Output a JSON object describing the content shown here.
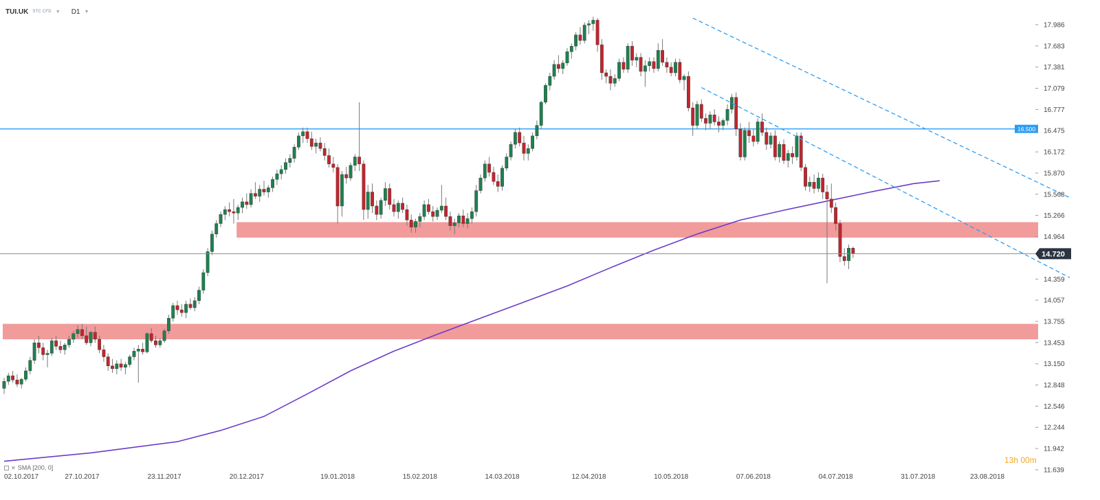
{
  "header": {
    "symbol": "TUI.UK",
    "instrument_type": "STC CFD",
    "timeframe": "D1",
    "dropdown_icon": "chevron-down-icon"
  },
  "indicator": {
    "label": "SMA [200, 0]",
    "icon": "indicator-settings-icon",
    "close_icon": "close-icon"
  },
  "timer_text": "13h 00m",
  "colors": {
    "bull": "#1f8050",
    "bear": "#c0262d",
    "sma": "#6a3cc9",
    "channel": "#2a9df4",
    "resistance_line": "#2a9df4",
    "zone": "#ef8a8a",
    "price_line": "#8a8a8a",
    "price_tag_bg": "#2b3440"
  },
  "chart_data": {
    "type": "candlestick",
    "instrument": "TUI.UK",
    "timeframe": "D1",
    "ylim": [
      11.639,
      18.24
    ],
    "yticks": [
      "17.986",
      "17.683",
      "17.381",
      "17.079",
      "16.777",
      "16.475",
      "16.172",
      "15.870",
      "15.568",
      "15.266",
      "14.964",
      "14.359",
      "14.057",
      "13.755",
      "13.453",
      "13.150",
      "12.848",
      "12.546",
      "12.244",
      "11.942",
      "11.639"
    ],
    "xticks": [
      {
        "label": "02.10.2017",
        "index": 0
      },
      {
        "label": "27.10.2017",
        "index": 18
      },
      {
        "label": "23.11.2017",
        "index": 37
      },
      {
        "label": "20.12.2017",
        "index": 56
      },
      {
        "label": "19.01.2018",
        "index": 77
      },
      {
        "label": "15.02.2018",
        "index": 96
      },
      {
        "label": "14.03.2018",
        "index": 115
      },
      {
        "label": "12.04.2018",
        "index": 135
      },
      {
        "label": "10.05.2018",
        "index": 154
      },
      {
        "label": "07.06.2018",
        "index": 173
      },
      {
        "label": "04.07.2018",
        "index": 192
      },
      {
        "label": "31.07.2018",
        "index": 211
      },
      {
        "label": "23.08.2018",
        "index": 227
      }
    ],
    "current_price": "14.720",
    "resistance_level": "16.500",
    "zones": [
      {
        "from": 14.95,
        "to": 15.17,
        "start_index": 54
      },
      {
        "from": 13.5,
        "to": 13.72,
        "start_index": 0
      }
    ],
    "channel": [
      {
        "start": {
          "index": 159,
          "y": 18.08
        },
        "end": {
          "index": 246,
          "y": 15.52
        }
      },
      {
        "start": {
          "index": 161,
          "y": 17.09
        },
        "end": {
          "index": 246,
          "y": 14.38
        }
      }
    ],
    "sma": {
      "name": "SMA [200, 0]",
      "points": [
        [
          0,
          11.76
        ],
        [
          20,
          11.88
        ],
        [
          40,
          12.04
        ],
        [
          50,
          12.2
        ],
        [
          60,
          12.4
        ],
        [
          70,
          12.72
        ],
        [
          80,
          13.05
        ],
        [
          90,
          13.33
        ],
        [
          100,
          13.57
        ],
        [
          110,
          13.8
        ],
        [
          120,
          14.03
        ],
        [
          130,
          14.26
        ],
        [
          140,
          14.52
        ],
        [
          150,
          14.77
        ],
        [
          160,
          15.0
        ],
        [
          170,
          15.2
        ],
        [
          180,
          15.34
        ],
        [
          190,
          15.47
        ],
        [
          200,
          15.6
        ],
        [
          210,
          15.72
        ],
        [
          216,
          15.76
        ]
      ]
    },
    "candles": [
      [
        12.8,
        12.95,
        12.72,
        12.9
      ],
      [
        12.9,
        13.02,
        12.85,
        12.98
      ],
      [
        12.98,
        13.05,
        12.88,
        12.92
      ],
      [
        12.92,
        13.0,
        12.82,
        12.86
      ],
      [
        12.86,
        12.95,
        12.8,
        12.93
      ],
      [
        12.93,
        13.1,
        12.9,
        13.05
      ],
      [
        13.05,
        13.25,
        13.0,
        13.2
      ],
      [
        13.2,
        13.5,
        13.15,
        13.45
      ],
      [
        13.45,
        13.55,
        13.3,
        13.38
      ],
      [
        13.38,
        13.45,
        13.2,
        13.28
      ],
      [
        13.28,
        13.35,
        13.1,
        13.3
      ],
      [
        13.3,
        13.52,
        13.26,
        13.48
      ],
      [
        13.48,
        13.55,
        13.35,
        13.4
      ],
      [
        13.4,
        13.48,
        13.3,
        13.35
      ],
      [
        13.35,
        13.45,
        13.28,
        13.42
      ],
      [
        13.42,
        13.55,
        13.38,
        13.5
      ],
      [
        13.5,
        13.62,
        13.45,
        13.58
      ],
      [
        13.58,
        13.7,
        13.52,
        13.64
      ],
      [
        13.64,
        13.72,
        13.5,
        13.55
      ],
      [
        13.55,
        13.68,
        13.42,
        13.45
      ],
      [
        13.45,
        13.62,
        13.4,
        13.6
      ],
      [
        13.6,
        13.68,
        13.45,
        13.5
      ],
      [
        13.5,
        13.55,
        13.3,
        13.35
      ],
      [
        13.35,
        13.42,
        13.18,
        13.25
      ],
      [
        13.25,
        13.3,
        13.05,
        13.12
      ],
      [
        13.12,
        13.22,
        13.02,
        13.08
      ],
      [
        13.08,
        13.2,
        13.0,
        13.15
      ],
      [
        13.15,
        13.22,
        13.05,
        13.1
      ],
      [
        13.1,
        13.18,
        13.0,
        13.14
      ],
      [
        13.14,
        13.28,
        13.1,
        13.25
      ],
      [
        13.25,
        13.38,
        13.2,
        13.33
      ],
      [
        13.33,
        13.42,
        12.88,
        13.36
      ],
      [
        13.36,
        13.45,
        13.28,
        13.32
      ],
      [
        13.32,
        13.6,
        13.3,
        13.58
      ],
      [
        13.58,
        13.66,
        13.45,
        13.48
      ],
      [
        13.48,
        13.55,
        13.38,
        13.42
      ],
      [
        13.42,
        13.52,
        13.38,
        13.48
      ],
      [
        13.48,
        13.65,
        13.45,
        13.62
      ],
      [
        13.62,
        13.85,
        13.58,
        13.8
      ],
      [
        13.8,
        14.02,
        13.75,
        13.98
      ],
      [
        13.98,
        14.05,
        13.85,
        13.92
      ],
      [
        13.92,
        14.0,
        13.82,
        13.88
      ],
      [
        13.88,
        14.05,
        13.8,
        14.0
      ],
      [
        14.0,
        14.08,
        13.92,
        13.95
      ],
      [
        13.95,
        14.1,
        13.9,
        14.05
      ],
      [
        14.05,
        14.25,
        14.0,
        14.2
      ],
      [
        14.2,
        14.5,
        14.15,
        14.45
      ],
      [
        14.45,
        14.8,
        14.4,
        14.75
      ],
      [
        14.75,
        15.05,
        14.7,
        15.0
      ],
      [
        15.0,
        15.2,
        14.95,
        15.15
      ],
      [
        15.15,
        15.32,
        15.1,
        15.28
      ],
      [
        15.28,
        15.4,
        15.2,
        15.35
      ],
      [
        15.35,
        15.45,
        15.25,
        15.32
      ],
      [
        15.32,
        15.5,
        15.15,
        15.3
      ],
      [
        15.3,
        15.42,
        15.2,
        15.38
      ],
      [
        15.38,
        15.52,
        15.3,
        15.46
      ],
      [
        15.46,
        15.58,
        15.36,
        15.42
      ],
      [
        15.42,
        15.64,
        15.38,
        15.58
      ],
      [
        15.58,
        15.74,
        15.5,
        15.54
      ],
      [
        15.54,
        15.7,
        15.46,
        15.64
      ],
      [
        15.64,
        15.76,
        15.55,
        15.6
      ],
      [
        15.6,
        15.7,
        15.52,
        15.66
      ],
      [
        15.66,
        15.82,
        15.6,
        15.78
      ],
      [
        15.78,
        15.92,
        15.7,
        15.86
      ],
      [
        15.86,
        15.98,
        15.78,
        15.92
      ],
      [
        15.92,
        16.08,
        15.86,
        16.02
      ],
      [
        16.02,
        16.14,
        15.95,
        16.08
      ],
      [
        16.08,
        16.28,
        16.02,
        16.24
      ],
      [
        16.24,
        16.45,
        16.2,
        16.4
      ],
      [
        16.4,
        16.52,
        16.3,
        16.46
      ],
      [
        16.46,
        16.52,
        16.3,
        16.36
      ],
      [
        16.36,
        16.46,
        16.2,
        16.25
      ],
      [
        16.25,
        16.36,
        16.15,
        16.3
      ],
      [
        16.3,
        16.38,
        16.18,
        16.22
      ],
      [
        16.22,
        16.3,
        16.05,
        16.12
      ],
      [
        16.12,
        16.22,
        15.95,
        16.0
      ],
      [
        16.0,
        16.1,
        15.88,
        15.95
      ],
      [
        15.95,
        16.0,
        15.15,
        15.4
      ],
      [
        15.4,
        15.9,
        15.25,
        15.85
      ],
      [
        15.85,
        15.96,
        15.72,
        15.8
      ],
      [
        15.8,
        16.02,
        15.76,
        15.98
      ],
      [
        15.98,
        16.14,
        15.9,
        16.1
      ],
      [
        16.1,
        16.88,
        15.9,
        16.0
      ],
      [
        16.0,
        16.05,
        15.2,
        15.35
      ],
      [
        15.35,
        15.7,
        15.22,
        15.6
      ],
      [
        15.6,
        15.72,
        15.3,
        15.4
      ],
      [
        15.4,
        15.48,
        15.2,
        15.28
      ],
      [
        15.28,
        15.52,
        15.22,
        15.48
      ],
      [
        15.48,
        15.74,
        15.4,
        15.65
      ],
      [
        15.65,
        15.72,
        15.35,
        15.42
      ],
      [
        15.42,
        15.5,
        15.25,
        15.32
      ],
      [
        15.32,
        15.48,
        15.22,
        15.44
      ],
      [
        15.44,
        15.52,
        15.3,
        15.35
      ],
      [
        15.35,
        15.42,
        15.12,
        15.2
      ],
      [
        15.2,
        15.28,
        15.02,
        15.1
      ],
      [
        15.1,
        15.22,
        15.02,
        15.18
      ],
      [
        15.18,
        15.3,
        15.1,
        15.25
      ],
      [
        15.25,
        15.48,
        15.2,
        15.42
      ],
      [
        15.42,
        15.5,
        15.28,
        15.32
      ],
      [
        15.32,
        15.4,
        15.18,
        15.25
      ],
      [
        15.25,
        15.38,
        15.2,
        15.34
      ],
      [
        15.34,
        15.7,
        15.3,
        15.4
      ],
      [
        15.4,
        15.52,
        15.2,
        15.25
      ],
      [
        15.25,
        15.32,
        15.05,
        15.12
      ],
      [
        15.12,
        15.22,
        15.0,
        15.16
      ],
      [
        15.16,
        15.3,
        15.1,
        15.26
      ],
      [
        15.26,
        15.35,
        15.1,
        15.15
      ],
      [
        15.15,
        15.3,
        15.08,
        15.22
      ],
      [
        15.22,
        15.38,
        15.15,
        15.32
      ],
      [
        15.32,
        15.7,
        15.25,
        15.62
      ],
      [
        15.62,
        15.85,
        15.58,
        15.8
      ],
      [
        15.8,
        16.05,
        15.75,
        16.0
      ],
      [
        16.0,
        16.1,
        15.82,
        15.88
      ],
      [
        15.88,
        15.96,
        15.7,
        15.75
      ],
      [
        15.75,
        15.85,
        15.6,
        15.68
      ],
      [
        15.68,
        15.98,
        15.62,
        15.94
      ],
      [
        15.94,
        16.15,
        15.9,
        16.1
      ],
      [
        16.1,
        16.32,
        16.05,
        16.28
      ],
      [
        16.28,
        16.5,
        16.22,
        16.45
      ],
      [
        16.45,
        16.52,
        16.25,
        16.3
      ],
      [
        16.3,
        16.4,
        16.05,
        16.15
      ],
      [
        16.15,
        16.28,
        16.05,
        16.22
      ],
      [
        16.22,
        16.45,
        16.18,
        16.4
      ],
      [
        16.4,
        16.62,
        16.35,
        16.55
      ],
      [
        16.55,
        16.9,
        16.5,
        16.88
      ],
      [
        16.88,
        17.15,
        16.85,
        17.12
      ],
      [
        17.12,
        17.3,
        17.05,
        17.25
      ],
      [
        17.25,
        17.48,
        17.2,
        17.42
      ],
      [
        17.42,
        17.55,
        17.3,
        17.36
      ],
      [
        17.36,
        17.48,
        17.28,
        17.44
      ],
      [
        17.44,
        17.65,
        17.4,
        17.6
      ],
      [
        17.6,
        17.72,
        17.5,
        17.68
      ],
      [
        17.68,
        17.88,
        17.62,
        17.84
      ],
      [
        17.84,
        17.95,
        17.7,
        17.76
      ],
      [
        17.76,
        18.02,
        17.72,
        17.98
      ],
      [
        17.98,
        18.05,
        17.85,
        18.0
      ],
      [
        18.0,
        18.1,
        17.9,
        18.05
      ],
      [
        18.05,
        18.08,
        17.6,
        17.7
      ],
      [
        17.7,
        17.78,
        17.2,
        17.3
      ],
      [
        17.3,
        17.35,
        17.15,
        17.25
      ],
      [
        17.25,
        17.35,
        17.05,
        17.15
      ],
      [
        17.15,
        17.28,
        17.1,
        17.22
      ],
      [
        17.22,
        17.5,
        17.18,
        17.45
      ],
      [
        17.45,
        17.52,
        17.3,
        17.35
      ],
      [
        17.35,
        17.72,
        17.3,
        17.68
      ],
      [
        17.68,
        17.75,
        17.4,
        17.48
      ],
      [
        17.48,
        17.58,
        17.38,
        17.52
      ],
      [
        17.52,
        17.58,
        17.25,
        17.32
      ],
      [
        17.32,
        17.48,
        17.1,
        17.4
      ],
      [
        17.4,
        17.52,
        17.32,
        17.46
      ],
      [
        17.46,
        17.52,
        17.3,
        17.36
      ],
      [
        17.36,
        17.72,
        17.32,
        17.62
      ],
      [
        17.62,
        17.78,
        17.4,
        17.45
      ],
      [
        17.45,
        17.52,
        17.3,
        17.38
      ],
      [
        17.38,
        17.45,
        17.25,
        17.3
      ],
      [
        17.3,
        17.5,
        17.25,
        17.45
      ],
      [
        17.45,
        17.5,
        17.15,
        17.2
      ],
      [
        17.2,
        17.28,
        17.05,
        17.25
      ],
      [
        17.25,
        17.32,
        16.75,
        16.8
      ],
      [
        16.8,
        16.88,
        16.4,
        16.55
      ],
      [
        16.55,
        16.9,
        16.5,
        16.85
      ],
      [
        16.85,
        16.92,
        16.6,
        16.65
      ],
      [
        16.65,
        16.72,
        16.48,
        16.58
      ],
      [
        16.58,
        16.75,
        16.5,
        16.7
      ],
      [
        16.7,
        16.78,
        16.55,
        16.6
      ],
      [
        16.6,
        16.68,
        16.45,
        16.55
      ],
      [
        16.55,
        16.65,
        16.48,
        16.62
      ],
      [
        16.62,
        16.85,
        16.55,
        16.78
      ],
      [
        16.78,
        17.0,
        16.72,
        16.95
      ],
      [
        16.95,
        17.02,
        16.4,
        16.5
      ],
      [
        16.5,
        16.58,
        16.05,
        16.1
      ],
      [
        16.1,
        16.52,
        16.05,
        16.48
      ],
      [
        16.48,
        16.6,
        16.3,
        16.4
      ],
      [
        16.4,
        16.5,
        16.25,
        16.32
      ],
      [
        16.32,
        16.65,
        16.28,
        16.6
      ],
      [
        16.6,
        16.72,
        16.4,
        16.45
      ],
      [
        16.45,
        16.52,
        16.2,
        16.28
      ],
      [
        16.28,
        16.45,
        16.22,
        16.4
      ],
      [
        16.4,
        16.48,
        16.05,
        16.1
      ],
      [
        16.1,
        16.32,
        16.02,
        16.28
      ],
      [
        16.28,
        16.35,
        16.0,
        16.05
      ],
      [
        16.05,
        16.2,
        15.95,
        16.15
      ],
      [
        16.15,
        16.25,
        16.0,
        16.1
      ],
      [
        16.1,
        16.45,
        16.05,
        16.4
      ],
      [
        16.4,
        16.45,
        15.9,
        15.95
      ],
      [
        15.95,
        16.0,
        15.62,
        15.68
      ],
      [
        15.68,
        15.82,
        15.6,
        15.74
      ],
      [
        15.74,
        15.85,
        15.58,
        15.65
      ],
      [
        15.65,
        15.88,
        15.6,
        15.8
      ],
      [
        15.8,
        15.86,
        15.5,
        15.6
      ],
      [
        15.6,
        15.7,
        14.3,
        15.5
      ],
      [
        15.5,
        15.72,
        15.3,
        15.38
      ],
      [
        15.38,
        15.45,
        15.05,
        15.15
      ],
      [
        15.15,
        15.2,
        14.6,
        14.68
      ],
      [
        14.68,
        14.8,
        14.55,
        14.62
      ],
      [
        14.62,
        14.85,
        14.5,
        14.8
      ],
      [
        14.8,
        14.82,
        14.66,
        14.72
      ]
    ]
  }
}
